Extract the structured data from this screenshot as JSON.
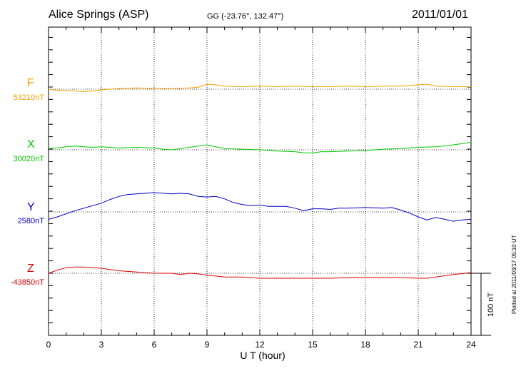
{
  "header": {
    "station": "Alice Springs (ASP)",
    "coords": "GG (-23.76°, 132.47°)",
    "date": "2011/01/01"
  },
  "footer_note": "Plotted at 2011/03/17 05:10 UT",
  "scale_bar_label": "100 nT",
  "chart_data": {
    "type": "line",
    "xlabel": "U T (hour)",
    "xlim": [
      0,
      24
    ],
    "xticks": [
      "0",
      "3",
      "6",
      "9",
      "12",
      "15",
      "18",
      "21",
      "24"
    ],
    "grid": true,
    "series": [
      {
        "name": "F",
        "baseline_label": "53210nT",
        "color": "#f0a000",
        "x": [
          0,
          0.5,
          1,
          1.5,
          2,
          2.5,
          3,
          4,
          5,
          6,
          7,
          8,
          8.5,
          9,
          9.5,
          10,
          11,
          12,
          13,
          14,
          15,
          16,
          17,
          18,
          19,
          20,
          21,
          21.5,
          22,
          23,
          24
        ],
        "y": [
          0,
          -2,
          -2,
          -3,
          -4,
          -3,
          -1,
          1,
          2,
          1,
          1,
          2,
          3,
          8,
          7,
          5,
          4,
          5,
          4,
          5,
          4,
          4,
          5,
          4,
          5,
          5,
          7,
          8,
          5,
          4,
          4
        ]
      },
      {
        "name": "X",
        "baseline_label": "30020nT",
        "color": "#00c800",
        "x": [
          0,
          0.5,
          1,
          1.5,
          2,
          2.5,
          3,
          4,
          5,
          6,
          6.5,
          7,
          7.5,
          8,
          8.5,
          9,
          9.5,
          10,
          11,
          12,
          13,
          14,
          14.5,
          15,
          15.5,
          16,
          17,
          18,
          19,
          20,
          21,
          22,
          23,
          24
        ],
        "y": [
          2,
          3,
          5,
          6,
          5,
          4,
          5,
          3,
          4,
          3,
          1,
          0,
          2,
          4,
          6,
          8,
          5,
          2,
          1,
          0,
          -2,
          -3,
          -5,
          -5,
          -3,
          -3,
          -2,
          -1,
          1,
          2,
          4,
          5,
          8,
          12
        ]
      },
      {
        "name": "Y",
        "baseline_label": "2580nT",
        "color": "#0000c8",
        "x": [
          0,
          0.5,
          1,
          1.5,
          2,
          2.5,
          3,
          3.5,
          4,
          4.5,
          5,
          5.5,
          6,
          6.5,
          7,
          7.5,
          8,
          8.5,
          9,
          9.5,
          10,
          10.5,
          11,
          11.5,
          12,
          12.5,
          13,
          13.5,
          14,
          14.5,
          15,
          15.5,
          16,
          16.5,
          17,
          18,
          19,
          19.5,
          20,
          20.5,
          21,
          21.5,
          22,
          22.5,
          23,
          23.5,
          24
        ],
        "y": [
          -12,
          -8,
          -3,
          2,
          6,
          10,
          14,
          20,
          25,
          28,
          29,
          30,
          31,
          30,
          29,
          30,
          29,
          25,
          24,
          25,
          21,
          15,
          12,
          10,
          11,
          9,
          9,
          9,
          6,
          2,
          5,
          5,
          4,
          6,
          6,
          7,
          6,
          7,
          3,
          -2,
          -8,
          -13,
          -9,
          -12,
          -15,
          -13,
          -12
        ]
      },
      {
        "name": "Z",
        "baseline_label": "-43850nT",
        "color": "#dc0000",
        "x": [
          0,
          0.5,
          1,
          1.5,
          2,
          2.5,
          3,
          4,
          5,
          6,
          7,
          7.5,
          8,
          8.5,
          9,
          10,
          11,
          12,
          13,
          14,
          15,
          16,
          17,
          18,
          19,
          20,
          21,
          21.5,
          22,
          23,
          24
        ],
        "y": [
          0,
          5,
          9,
          10,
          10,
          9,
          8,
          4,
          2,
          0,
          0,
          -2,
          0,
          -1,
          -3,
          -6,
          -6,
          -8,
          -8,
          -8,
          -8,
          -8,
          -7,
          -7,
          -7,
          -7,
          -8,
          -8,
          -6,
          -2,
          1
        ]
      }
    ]
  }
}
